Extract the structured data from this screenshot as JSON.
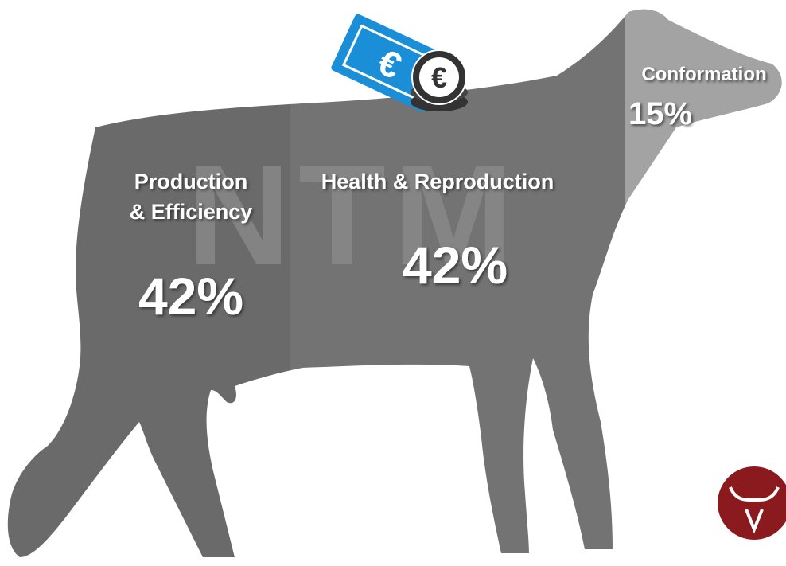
{
  "watermark": "NTM",
  "sections": [
    {
      "label_lines": [
        "Production",
        "& Efficiency"
      ],
      "share": "42%"
    },
    {
      "label_lines": [
        "Health & Reproduction"
      ],
      "share": "42%"
    },
    {
      "label_lines": [
        "Conformation"
      ],
      "share": "15%"
    }
  ]
}
